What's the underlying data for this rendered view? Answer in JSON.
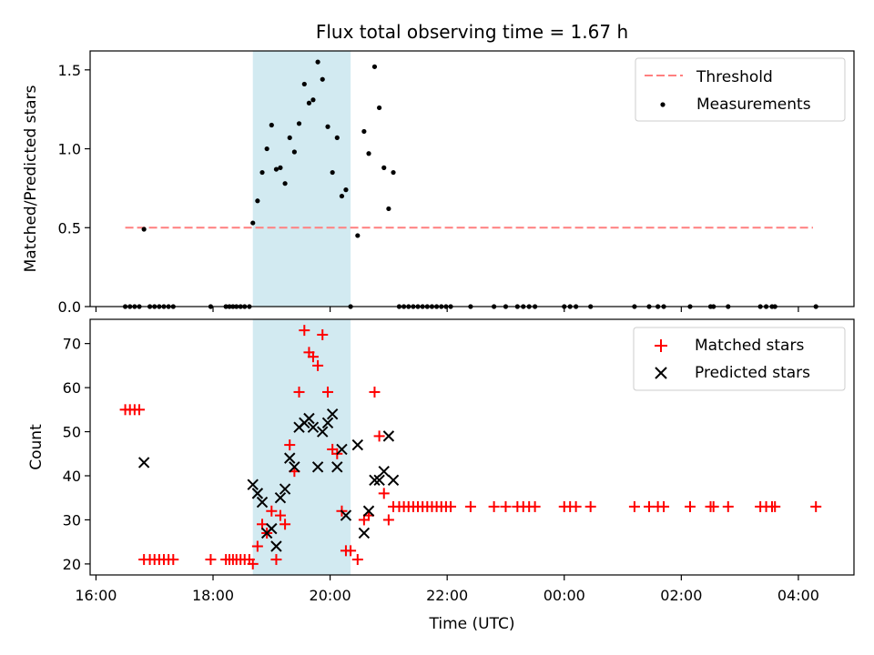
{
  "figure": {
    "title": "Flux total observing time = 1.67 h"
  },
  "chart_data": [
    {
      "type": "scatter",
      "ylabel": "Matched/Predicted stars",
      "xlabel": "",
      "xlim": [
        15.9,
        28.95
      ],
      "ylim": [
        0,
        1.62
      ],
      "yticks": [
        {
          "v": 0.0,
          "label": "0.0"
        },
        {
          "v": 0.5,
          "label": "0.5"
        },
        {
          "v": 1.0,
          "label": "1.0"
        },
        {
          "v": 1.5,
          "label": "1.5"
        }
      ],
      "xticks": [
        16,
        18,
        20,
        22,
        24,
        26,
        28
      ],
      "shaded_span": {
        "x0": 18.68,
        "x1": 20.35,
        "color": "#add8e6"
      },
      "threshold": {
        "value": 0.5,
        "x0": 16.5,
        "x1": 28.25,
        "color": "#ff7f7f"
      },
      "legend_position": "top-right",
      "legend": [
        {
          "label": "Threshold",
          "kind": "dash",
          "color": "#ff7f7f"
        },
        {
          "label": "Measurements",
          "kind": "dot",
          "color": "#000000"
        }
      ],
      "series": [
        {
          "name": "Measurements",
          "color": "#000000",
          "points": [
            [
              16.5,
              0
            ],
            [
              16.58,
              0
            ],
            [
              16.66,
              0
            ],
            [
              16.74,
              0
            ],
            [
              16.82,
              0.49
            ],
            [
              16.92,
              0
            ],
            [
              17.0,
              0
            ],
            [
              17.08,
              0
            ],
            [
              17.16,
              0
            ],
            [
              17.24,
              0
            ],
            [
              17.32,
              0
            ],
            [
              17.96,
              0
            ],
            [
              18.22,
              0
            ],
            [
              18.28,
              0
            ],
            [
              18.34,
              0
            ],
            [
              18.4,
              0
            ],
            [
              18.47,
              0
            ],
            [
              18.54,
              0
            ],
            [
              18.62,
              0
            ],
            [
              18.68,
              0.53
            ],
            [
              18.76,
              0.67
            ],
            [
              18.84,
              0.85
            ],
            [
              18.92,
              1.0
            ],
            [
              19.0,
              1.15
            ],
            [
              19.08,
              0.87
            ],
            [
              19.15,
              0.88
            ],
            [
              19.23,
              0.78
            ],
            [
              19.31,
              1.07
            ],
            [
              19.39,
              0.98
            ],
            [
              19.47,
              1.16
            ],
            [
              19.56,
              1.41
            ],
            [
              19.64,
              1.29
            ],
            [
              19.71,
              1.31
            ],
            [
              19.79,
              1.55
            ],
            [
              19.87,
              1.44
            ],
            [
              19.96,
              1.14
            ],
            [
              20.04,
              0.85
            ],
            [
              20.12,
              1.07
            ],
            [
              20.2,
              0.7
            ],
            [
              20.27,
              0.74
            ],
            [
              20.35,
              0
            ],
            [
              20.47,
              0.45
            ],
            [
              20.58,
              1.11
            ],
            [
              20.66,
              0.97
            ],
            [
              20.76,
              1.52
            ],
            [
              20.84,
              1.26
            ],
            [
              20.92,
              0.88
            ],
            [
              21.0,
              0.62
            ],
            [
              21.08,
              0.85
            ],
            [
              21.18,
              0
            ],
            [
              21.26,
              0
            ],
            [
              21.34,
              0
            ],
            [
              21.42,
              0
            ],
            [
              21.5,
              0
            ],
            [
              21.58,
              0
            ],
            [
              21.66,
              0
            ],
            [
              21.74,
              0
            ],
            [
              21.82,
              0
            ],
            [
              21.9,
              0
            ],
            [
              21.98,
              0
            ],
            [
              22.06,
              0
            ],
            [
              22.4,
              0
            ],
            [
              22.8,
              0
            ],
            [
              23.0,
              0
            ],
            [
              23.2,
              0
            ],
            [
              23.3,
              0
            ],
            [
              23.4,
              0
            ],
            [
              23.5,
              0
            ],
            [
              24.0,
              0
            ],
            [
              24.1,
              0
            ],
            [
              24.2,
              0
            ],
            [
              24.45,
              0
            ],
            [
              25.2,
              0
            ],
            [
              25.45,
              0
            ],
            [
              25.6,
              0
            ],
            [
              25.7,
              0
            ],
            [
              26.15,
              0
            ],
            [
              26.5,
              0
            ],
            [
              26.55,
              0
            ],
            [
              26.8,
              0
            ],
            [
              27.35,
              0
            ],
            [
              27.45,
              0
            ],
            [
              27.55,
              0
            ],
            [
              27.6,
              0
            ],
            [
              28.3,
              0
            ]
          ]
        }
      ]
    },
    {
      "type": "scatter",
      "ylabel": "Count",
      "xlabel": "Time (UTC)",
      "xlim": [
        15.9,
        28.95
      ],
      "ylim": [
        17.5,
        75.5
      ],
      "yticks": [
        {
          "v": 20,
          "label": "20"
        },
        {
          "v": 30,
          "label": "30"
        },
        {
          "v": 40,
          "label": "40"
        },
        {
          "v": 50,
          "label": "50"
        },
        {
          "v": 60,
          "label": "60"
        },
        {
          "v": 70,
          "label": "70"
        }
      ],
      "xticks": [
        {
          "v": 16,
          "label": "16:00"
        },
        {
          "v": 18,
          "label": "18:00"
        },
        {
          "v": 20,
          "label": "20:00"
        },
        {
          "v": 22,
          "label": "22:00"
        },
        {
          "v": 24,
          "label": "00:00"
        },
        {
          "v": 26,
          "label": "02:00"
        },
        {
          "v": 28,
          "label": "04:00"
        }
      ],
      "shaded_span": {
        "x0": 18.68,
        "x1": 20.35,
        "color": "#add8e6"
      },
      "legend_position": "top-right",
      "legend": [
        {
          "label": "Matched stars",
          "kind": "plus",
          "color": "#ff0000"
        },
        {
          "label": "Predicted stars",
          "kind": "cross",
          "color": "#000000"
        }
      ],
      "series": [
        {
          "name": "Matched stars",
          "marker": "plus",
          "color": "#ff0000",
          "points": [
            [
              16.5,
              55
            ],
            [
              16.58,
              55
            ],
            [
              16.66,
              55
            ],
            [
              16.74,
              55
            ],
            [
              16.82,
              21
            ],
            [
              16.92,
              21
            ],
            [
              17.0,
              21
            ],
            [
              17.08,
              21
            ],
            [
              17.16,
              21
            ],
            [
              17.24,
              21
            ],
            [
              17.32,
              21
            ],
            [
              17.96,
              21
            ],
            [
              18.22,
              21
            ],
            [
              18.28,
              21
            ],
            [
              18.34,
              21
            ],
            [
              18.4,
              21
            ],
            [
              18.47,
              21
            ],
            [
              18.54,
              21
            ],
            [
              18.62,
              21
            ],
            [
              18.68,
              20
            ],
            [
              18.76,
              24
            ],
            [
              18.84,
              29
            ],
            [
              18.92,
              27
            ],
            [
              19.0,
              32
            ],
            [
              19.08,
              21
            ],
            [
              19.15,
              31
            ],
            [
              19.23,
              29
            ],
            [
              19.31,
              47
            ],
            [
              19.39,
              41
            ],
            [
              19.47,
              59
            ],
            [
              19.56,
              73
            ],
            [
              19.64,
              68
            ],
            [
              19.71,
              67
            ],
            [
              19.79,
              65
            ],
            [
              19.87,
              72
            ],
            [
              19.96,
              59
            ],
            [
              20.04,
              46
            ],
            [
              20.12,
              45
            ],
            [
              20.2,
              32
            ],
            [
              20.27,
              23
            ],
            [
              20.35,
              23
            ],
            [
              20.47,
              21
            ],
            [
              20.58,
              30
            ],
            [
              20.66,
              31
            ],
            [
              20.76,
              59
            ],
            [
              20.84,
              49
            ],
            [
              20.92,
              36
            ],
            [
              21.0,
              30
            ],
            [
              21.08,
              33
            ],
            [
              21.18,
              33
            ],
            [
              21.26,
              33
            ],
            [
              21.34,
              33
            ],
            [
              21.42,
              33
            ],
            [
              21.5,
              33
            ],
            [
              21.58,
              33
            ],
            [
              21.66,
              33
            ],
            [
              21.74,
              33
            ],
            [
              21.82,
              33
            ],
            [
              21.9,
              33
            ],
            [
              21.98,
              33
            ],
            [
              22.06,
              33
            ],
            [
              22.4,
              33
            ],
            [
              22.8,
              33
            ],
            [
              23.0,
              33
            ],
            [
              23.2,
              33
            ],
            [
              23.3,
              33
            ],
            [
              23.4,
              33
            ],
            [
              23.5,
              33
            ],
            [
              24.0,
              33
            ],
            [
              24.1,
              33
            ],
            [
              24.2,
              33
            ],
            [
              24.45,
              33
            ],
            [
              25.2,
              33
            ],
            [
              25.45,
              33
            ],
            [
              25.6,
              33
            ],
            [
              25.7,
              33
            ],
            [
              26.15,
              33
            ],
            [
              26.5,
              33
            ],
            [
              26.55,
              33
            ],
            [
              26.8,
              33
            ],
            [
              27.35,
              33
            ],
            [
              27.45,
              33
            ],
            [
              27.55,
              33
            ],
            [
              27.6,
              33
            ],
            [
              28.3,
              33
            ]
          ]
        },
        {
          "name": "Predicted stars",
          "marker": "cross",
          "color": "#000000",
          "points": [
            [
              16.82,
              43
            ],
            [
              18.68,
              38
            ],
            [
              18.76,
              36
            ],
            [
              18.84,
              34
            ],
            [
              18.92,
              27
            ],
            [
              19.0,
              28
            ],
            [
              19.08,
              24
            ],
            [
              19.15,
              35
            ],
            [
              19.23,
              37
            ],
            [
              19.31,
              44
            ],
            [
              19.39,
              42
            ],
            [
              19.47,
              51
            ],
            [
              19.56,
              52
            ],
            [
              19.64,
              53
            ],
            [
              19.71,
              51
            ],
            [
              19.79,
              42
            ],
            [
              19.87,
              50
            ],
            [
              19.96,
              52
            ],
            [
              20.04,
              54
            ],
            [
              20.12,
              42
            ],
            [
              20.2,
              46
            ],
            [
              20.27,
              31
            ],
            [
              20.47,
              47
            ],
            [
              20.58,
              27
            ],
            [
              20.66,
              32
            ],
            [
              20.76,
              39
            ],
            [
              20.84,
              39
            ],
            [
              20.92,
              41
            ],
            [
              21.0,
              49
            ],
            [
              21.08,
              39
            ]
          ]
        }
      ]
    }
  ]
}
